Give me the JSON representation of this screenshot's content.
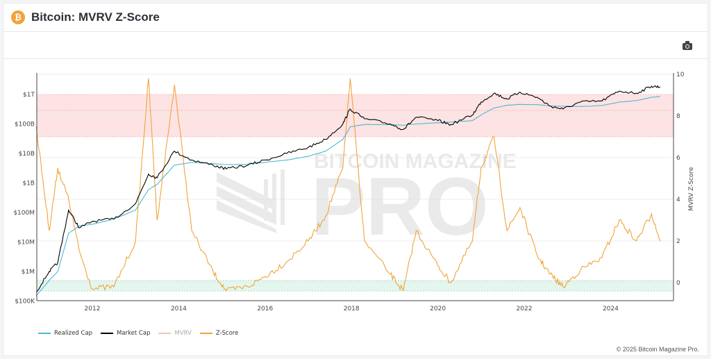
{
  "header": {
    "title": "Bitcoin: MVRV Z-Score",
    "icon": "bitcoin-icon"
  },
  "toolbar": {
    "camera_icon": "camera-icon"
  },
  "footer": {
    "copyright": "© 2025 Bitcoin Magazine Pro."
  },
  "watermark": {
    "line1": "BITCOIN MAGAZINE",
    "line2": "PRO"
  },
  "colors": {
    "realized_cap": "#4db8d6",
    "market_cap": "#000000",
    "mvrv": "#f2a79a",
    "zscore": "#f2a33a",
    "pink_band": "#fde3e3",
    "green_band": "#e3f7ee"
  },
  "chart_data": {
    "type": "line",
    "title": "Bitcoin: MVRV Z-Score",
    "xlabel": "",
    "ylabel_left": "",
    "ylabel_right": "MVRV Z-Score",
    "x_ticks": [
      "2012",
      "2014",
      "2016",
      "2018",
      "2020",
      "2022",
      "2024"
    ],
    "y_left_ticks": [
      "$100K",
      "$1M",
      "$10M",
      "$100M",
      "$1B",
      "$10B",
      "$100B",
      "$1T"
    ],
    "y_right_ticks": [
      "0",
      "2",
      "4",
      "6",
      "8",
      "10"
    ],
    "y_left_scale": "log",
    "y_left_range": [
      100000,
      3000000000000
    ],
    "y_right_range": [
      -1,
      10
    ],
    "legend": [
      "Realized Cap",
      "Market Cap",
      "MVRV",
      "Z-Score"
    ],
    "legend_position": "bottom-left",
    "bands": [
      {
        "name": "overvalued-zone",
        "z_from": 7,
        "z_to": 9,
        "color": "#fde3e3"
      },
      {
        "name": "undervalued-zone",
        "z_from": -0.4,
        "z_to": 0.1,
        "color": "#e3f7ee"
      }
    ],
    "x": [
      2010.7,
      2011.0,
      2011.2,
      2011.45,
      2011.7,
      2012.0,
      2012.5,
      2013.0,
      2013.3,
      2013.5,
      2013.9,
      2014.3,
      2014.8,
      2015.1,
      2015.6,
      2016.0,
      2016.5,
      2017.0,
      2017.4,
      2017.8,
      2017.97,
      2018.3,
      2018.9,
      2019.2,
      2019.5,
      2020.0,
      2020.3,
      2020.8,
      2021.0,
      2021.3,
      2021.6,
      2021.9,
      2022.3,
      2022.6,
      2022.9,
      2023.3,
      2023.8,
      2024.2,
      2024.6,
      2024.95,
      2025.15
    ],
    "series": [
      {
        "name": "Market Cap",
        "unit": "USD",
        "values": [
          200000,
          1000000,
          2000000,
          120000000,
          30000000,
          50000000,
          60000000,
          200000000,
          2000000000,
          1500000000,
          12000000000,
          6000000000,
          4000000000,
          3000000000,
          4000000000,
          6000000000,
          10000000000,
          16000000000,
          30000000000,
          100000000000,
          320000000000,
          150000000000,
          100000000000,
          65000000000,
          170000000000,
          130000000000,
          95000000000,
          200000000000,
          550000000000,
          1100000000000,
          700000000000,
          1200000000000,
          800000000000,
          400000000000,
          320000000000,
          550000000000,
          600000000000,
          1300000000000,
          1100000000000,
          1900000000000,
          1800000000000
        ]
      },
      {
        "name": "Realized Cap",
        "unit": "USD",
        "values": [
          150000,
          500000,
          1000000,
          20000000,
          35000000,
          40000000,
          60000000,
          120000000,
          600000000,
          900000000,
          4000000000,
          5000000000,
          4500000000,
          4200000000,
          4300000000,
          5000000000,
          6000000000,
          8000000000,
          12000000000,
          30000000000,
          80000000000,
          95000000000,
          95000000000,
          90000000000,
          100000000000,
          110000000000,
          115000000000,
          130000000000,
          200000000000,
          350000000000,
          430000000000,
          460000000000,
          450000000000,
          410000000000,
          400000000000,
          390000000000,
          420000000000,
          550000000000,
          620000000000,
          800000000000,
          850000000000
        ]
      },
      {
        "name": "Z-Score",
        "unit": "",
        "values": [
          7.5,
          2.5,
          5.5,
          4.0,
          1.5,
          -0.3,
          -0.2,
          2.0,
          9.8,
          3.0,
          9.5,
          2.5,
          0.5,
          -0.4,
          -0.2,
          0.3,
          1.0,
          2.0,
          3.2,
          5.5,
          9.8,
          2.0,
          0.4,
          -0.4,
          2.5,
          0.8,
          0.0,
          2.0,
          5.5,
          7.0,
          2.5,
          3.6,
          1.3,
          0.4,
          -0.2,
          0.6,
          1.2,
          3.0,
          2.0,
          3.3,
          2.0
        ]
      }
    ]
  }
}
